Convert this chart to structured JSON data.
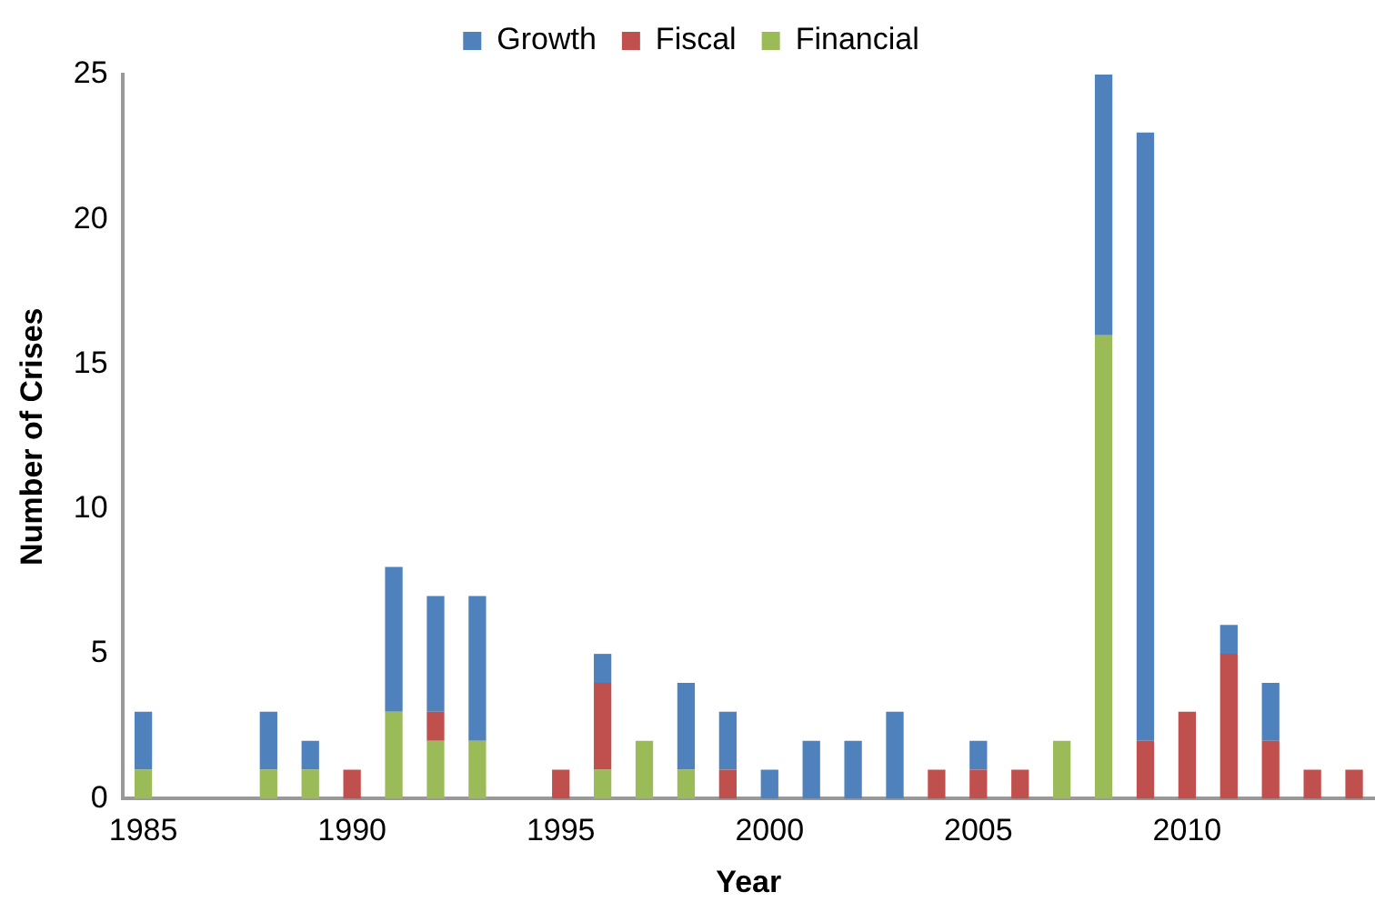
{
  "chart_data": {
    "type": "bar",
    "stacked": true,
    "xlabel": "Year",
    "ylabel": "Number of Crises",
    "categories": [
      "1985",
      null,
      null,
      null,
      null,
      "1990",
      null,
      null,
      null,
      null,
      "1995",
      null,
      null,
      null,
      null,
      "2000",
      null,
      null,
      null,
      null,
      "2005",
      null,
      null,
      null,
      null,
      "2010",
      null,
      null,
      null,
      null
    ],
    "series": [
      {
        "name": "Financial",
        "color": "#9bbb59",
        "values": [
          1,
          0,
          0,
          1,
          1,
          0,
          3,
          2,
          2,
          0,
          0,
          1,
          2,
          1,
          0,
          0,
          0,
          0,
          0,
          0,
          0,
          0,
          2,
          16,
          0,
          0,
          0,
          0,
          0,
          0
        ]
      },
      {
        "name": "Fiscal",
        "color": "#c0504d",
        "values": [
          0,
          0,
          0,
          0,
          0,
          1,
          0,
          1,
          0,
          0,
          1,
          3,
          0,
          0,
          1,
          0,
          0,
          0,
          0,
          1,
          1,
          1,
          0,
          0,
          2,
          3,
          5,
          2,
          1,
          1
        ]
      },
      {
        "name": "Growth",
        "color": "#4f81bd",
        "values": [
          2,
          0,
          0,
          2,
          1,
          0,
          5,
          4,
          5,
          0,
          0,
          1,
          0,
          3,
          2,
          1,
          2,
          2,
          3,
          0,
          1,
          0,
          0,
          9,
          21,
          0,
          1,
          2,
          0,
          0
        ]
      }
    ],
    "ylim": [
      0,
      25
    ],
    "yticks": [
      0,
      5,
      10,
      15,
      20,
      25
    ],
    "grid": false,
    "legend": "top"
  }
}
